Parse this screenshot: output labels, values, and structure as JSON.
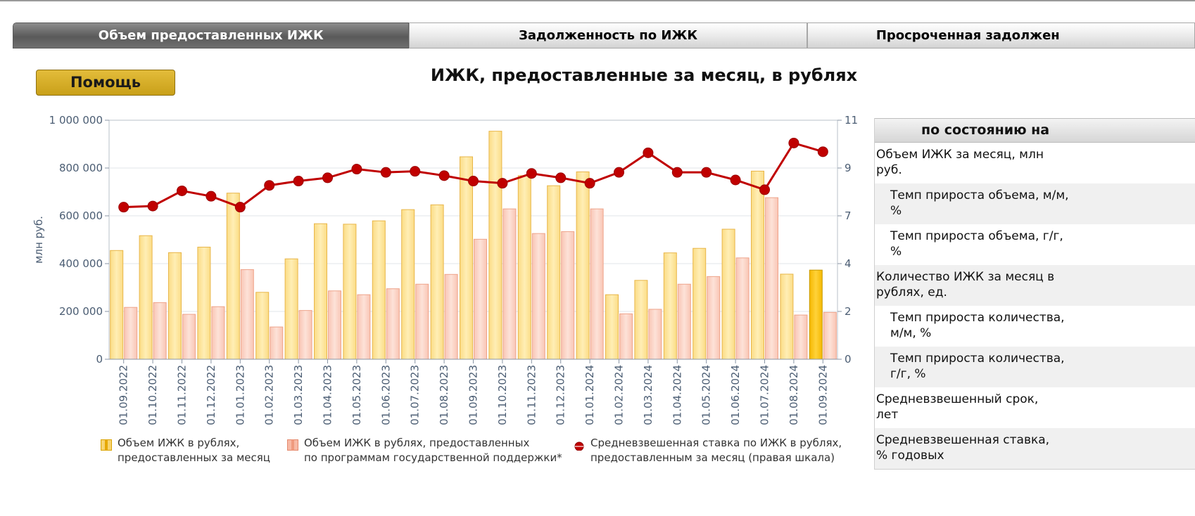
{
  "tabs": [
    {
      "label": "Объем предоставленных ИЖК"
    },
    {
      "label": "Задолженность по ИЖК"
    },
    {
      "label": "Просроченная задолжен"
    }
  ],
  "help_button": "Помощь",
  "title": "ИЖК, предоставленные за месяц, в рублях",
  "legend": [
    {
      "line1": "Объем ИЖК в рублях,",
      "line2": "предоставленных за месяц",
      "color": "#f8d470"
    },
    {
      "line1": "Объем ИЖК в рублях, предоставленных",
      "line2": "по программам государственной поддержки*",
      "color": "#f7b9a5"
    },
    {
      "line1": "Средневзвешенная ставка по ИЖК в рублях,",
      "line2": "предоставленным за месяц (правая шкала)",
      "color": "#c00000"
    }
  ],
  "side_table": {
    "header": "по состоянию на",
    "rows": [
      {
        "label": "Объем ИЖК за месяц, млн руб.",
        "indent": false
      },
      {
        "label": "Темп прироста объема, м/м, %",
        "indent": true
      },
      {
        "label": "Темп прироста объема, г/г, %",
        "indent": true
      },
      {
        "label": "Количество ИЖК за месяц в рублях, ед.",
        "indent": false
      },
      {
        "label": "Темп прироста количества, м/м, %",
        "indent": true
      },
      {
        "label": "Темп прироста количества, г/г, %",
        "indent": true
      },
      {
        "label": "Средневзвешенный срок, лет",
        "indent": false
      },
      {
        "label": "Средневзвешенная ставка, % годовых",
        "indent": false
      }
    ]
  },
  "chart_data": {
    "type": "bar",
    "categories": [
      "01.09.2022",
      "01.10.2022",
      "01.11.2022",
      "01.12.2022",
      "01.01.2023",
      "01.02.2023",
      "01.03.2023",
      "01.04.2023",
      "01.05.2023",
      "01.06.2023",
      "01.07.2023",
      "01.08.2023",
      "01.09.2023",
      "01.10.2023",
      "01.11.2023",
      "01.12.2023",
      "01.01.2024",
      "01.02.2024",
      "01.03.2024",
      "01.04.2024",
      "01.05.2024",
      "01.06.2024",
      "01.07.2024",
      "01.08.2024",
      "01.09.2024"
    ],
    "ylabel": "млн руб.",
    "ylim": [
      0,
      1000000
    ],
    "yticks": [
      "0",
      "200 000",
      "400 000",
      "600 000",
      "800 000",
      "1 000 000"
    ],
    "y2lim": [
      0,
      11
    ],
    "y2ticks": [
      "0",
      "2",
      "4",
      "7",
      "9",
      "11"
    ],
    "series": [
      {
        "name": "Объем ИЖК в рублях, предоставленных за месяц",
        "kind": "bar",
        "color": "#f8d470",
        "values": [
          455000,
          517000,
          446000,
          469000,
          695000,
          280000,
          420000,
          567000,
          565000,
          579000,
          626000,
          646000,
          847000,
          954000,
          768000,
          726000,
          784000,
          270000,
          330000,
          445000,
          464000,
          544000,
          787000,
          356000,
          373000
        ]
      },
      {
        "name": "Объем ИЖК в рублях, предоставленных по программам государственной поддержки*",
        "kind": "bar",
        "color": "#f7b9a5",
        "values": [
          217000,
          237000,
          188000,
          220000,
          375000,
          135000,
          204000,
          286000,
          270000,
          295000,
          314000,
          355000,
          502000,
          629000,
          526000,
          534000,
          629000,
          190000,
          209000,
          314000,
          346000,
          424000,
          676000,
          185000,
          196000
        ]
      },
      {
        "name": "Средневзвешенная ставка по ИЖК в рублях, предоставленным за месяц (правая шкала)",
        "kind": "line",
        "color": "#c00000",
        "values": [
          7.0,
          7.05,
          7.75,
          7.5,
          7.0,
          8.0,
          8.2,
          8.35,
          8.75,
          8.6,
          8.65,
          8.45,
          8.2,
          8.1,
          8.55,
          8.35,
          8.1,
          8.6,
          9.5,
          8.6,
          8.6,
          8.25,
          7.8,
          9.95,
          9.55
        ]
      }
    ]
  }
}
